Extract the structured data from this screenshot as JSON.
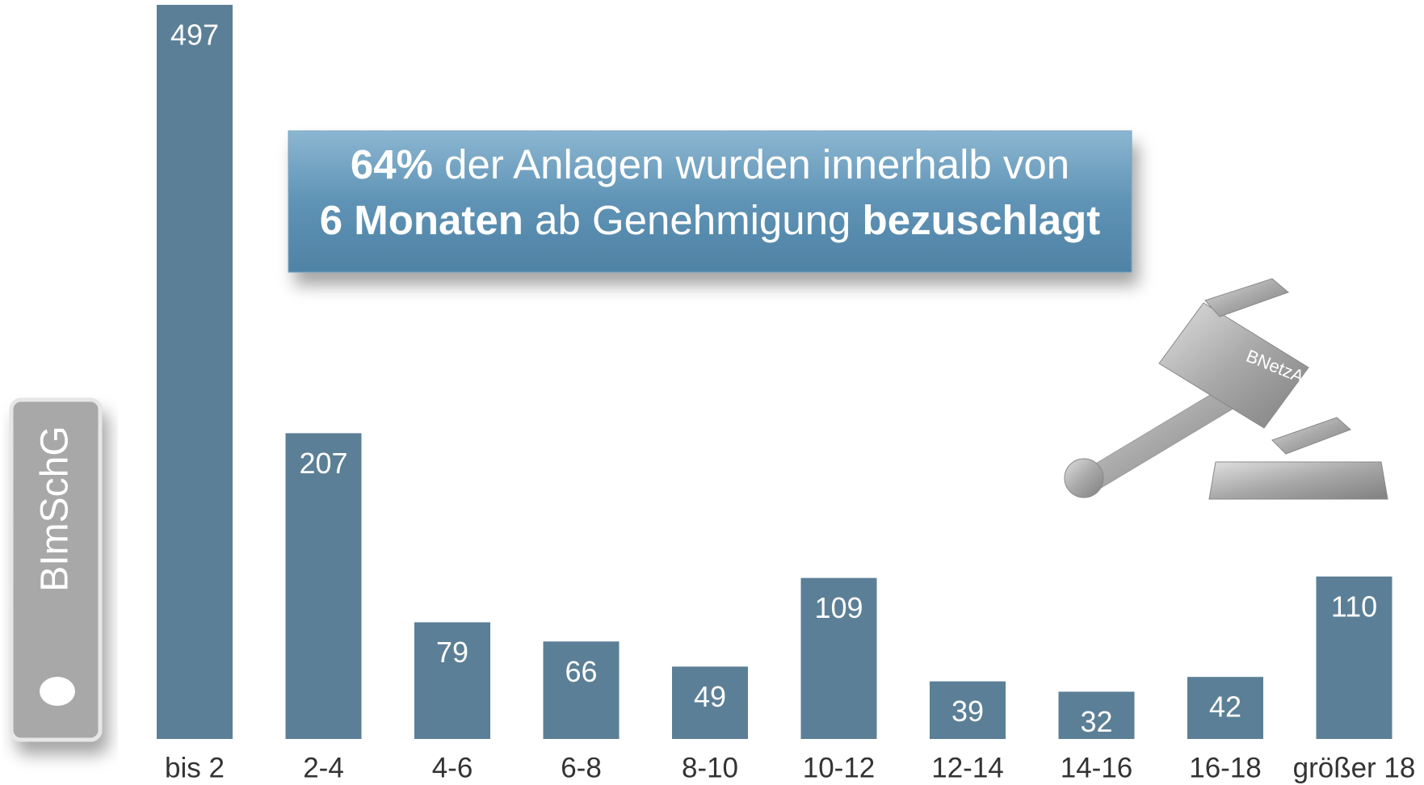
{
  "chart_data": {
    "type": "bar",
    "categories": [
      "bis 2",
      "2-4",
      "4-6",
      "6-8",
      "8-10",
      "10-12",
      "12-14",
      "14-16",
      "16-18",
      "größer 18"
    ],
    "values": [
      497,
      207,
      79,
      66,
      49,
      109,
      39,
      32,
      42,
      110
    ],
    "color": "#5b7f96",
    "annotation": {
      "lines": [
        [
          {
            "text": "64%",
            "bold": true
          },
          {
            "text": " der Anlagen wurden innerhalb von",
            "bold": false
          }
        ],
        [
          {
            "text": "6 Monaten",
            "bold": true
          },
          {
            "text": " ab Genehmigung ",
            "bold": false
          },
          {
            "text": "bezuschlagt",
            "bold": true
          }
        ]
      ]
    },
    "side_label": "BImSchG",
    "gavel_label": "BNetzA"
  }
}
